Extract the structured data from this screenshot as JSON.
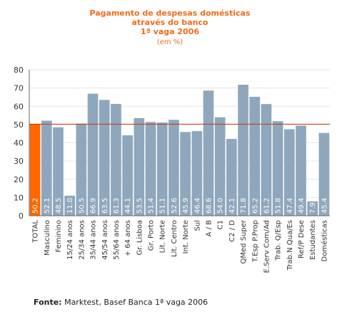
{
  "chart_data": {
    "type": "bar",
    "title": [
      "Pagamento de despesas domésticas",
      "através do banco",
      "1ª vaga 2006"
    ],
    "subtitle": "(em %)",
    "xlabel": "",
    "ylabel": "",
    "ylim": [
      0,
      80
    ],
    "yticks": [
      0,
      10,
      20,
      30,
      40,
      50,
      60,
      70,
      80
    ],
    "reference_line": 50.2,
    "grid": true,
    "categories": [
      "TOTAL",
      "Masculino",
      "Feminino",
      "15/24 anos",
      "25/34 anos",
      "35/44 anos",
      "45/54 anos",
      "55/64 anos",
      "+ 64 anos",
      "Gr. Lisboa",
      "Gr. Porto",
      "Lit. Norte",
      "Lit. Centro",
      "Int. Norte",
      "Sul",
      "A / B",
      "C1",
      "C2 / D",
      "QMed Super",
      "T.Esp P.Prop",
      "E.Serv Com/Ad",
      "Trab. Q/Esp",
      "Trab.N Qua/Es",
      "Ref/P Dese",
      "Estudantes",
      "Domésticas"
    ],
    "values": [
      50.2,
      52.1,
      48.5,
      11.0,
      50.5,
      66.9,
      63.5,
      61.3,
      44.1,
      53.5,
      51.4,
      51.1,
      52.6,
      45.9,
      46.4,
      68.6,
      54.0,
      42.1,
      71.8,
      65.2,
      61.2,
      51.8,
      47.4,
      49.4,
      7.9,
      45.4
    ],
    "value_labels": [
      "50.2",
      "52.1",
      "48.5",
      "11.0",
      "50.5",
      "66.9",
      "63.5",
      "61.3",
      "44.1",
      "53.5",
      "51.4",
      "51.1",
      "52.6",
      "45.9",
      "46.4",
      "68.6",
      "54.0",
      "42.1",
      "71.8",
      "65.2",
      "61.2",
      "51.8",
      "47.4",
      "49.4",
      "7.9",
      "45.4"
    ],
    "colors": {
      "highlight": "#ff6600",
      "bar": "#8fa7bc",
      "reference": "#cc3300",
      "axis": "#666666",
      "grid": "#e6e6e6"
    }
  },
  "source": {
    "label": "Fonte:",
    "text": " Marktest, Basef Banca 1ª vaga 2006"
  }
}
